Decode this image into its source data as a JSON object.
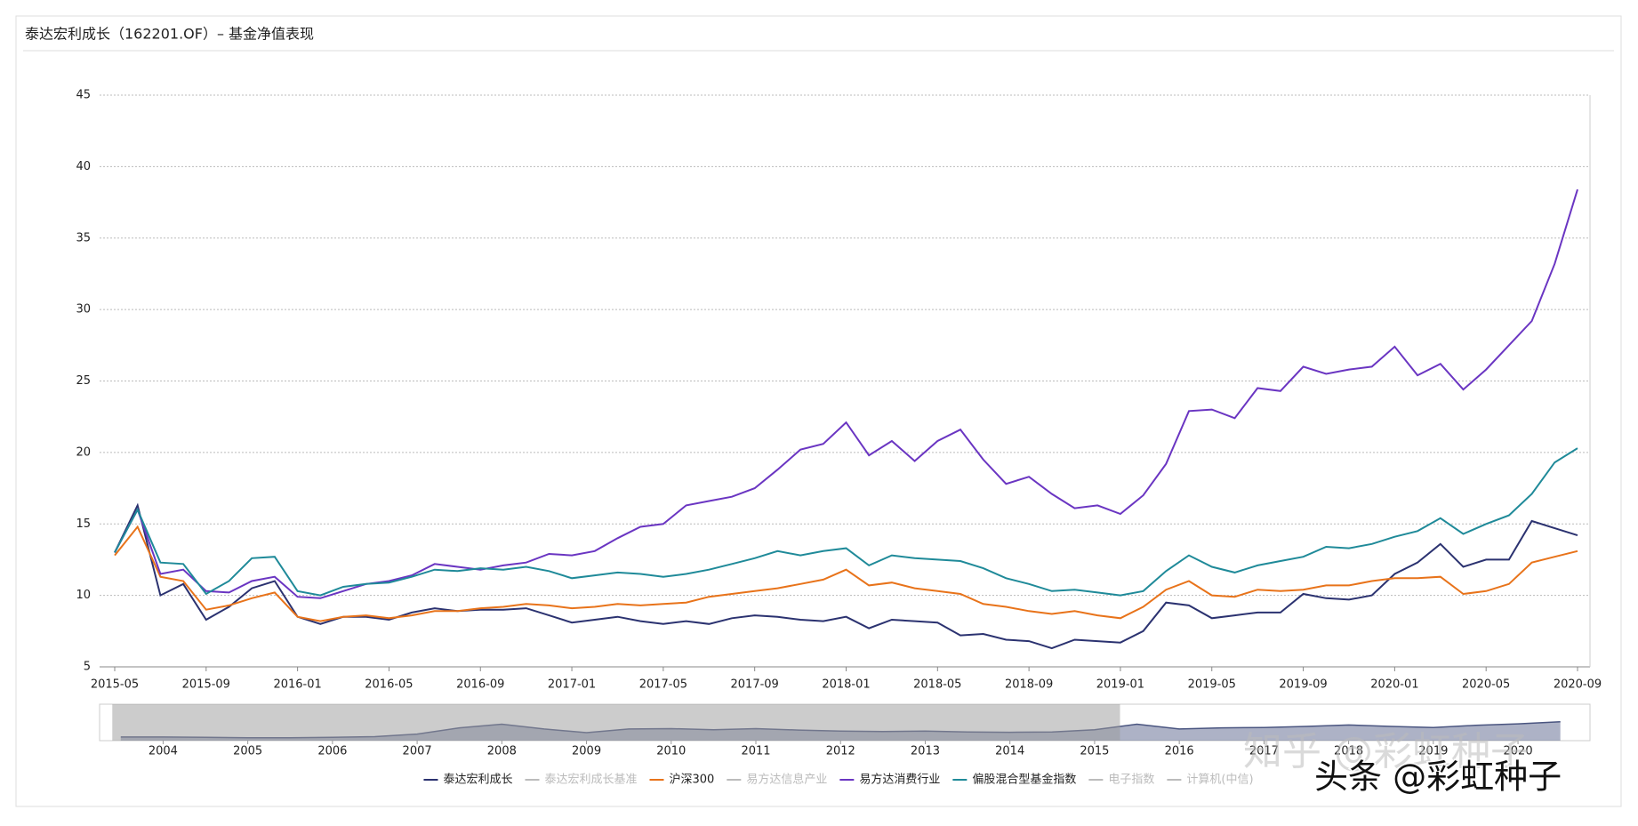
{
  "chart_data": {
    "type": "line",
    "title": "泰达宏利成长（162201.OF）– 基金净值表现",
    "categories": [
      "2015-05",
      null,
      null,
      null,
      "2015-09",
      null,
      null,
      null,
      "2016-01",
      null,
      null,
      null,
      "2016-05",
      null,
      null,
      null,
      "2016-09",
      null,
      null,
      null,
      "2017-01",
      null,
      null,
      null,
      "2017-05",
      null,
      null,
      null,
      "2017-09",
      null,
      null,
      null,
      "2018-01",
      null,
      null,
      null,
      "2018-05",
      null,
      null,
      null,
      "2018-09",
      null,
      null,
      null,
      "2019-01",
      null,
      null,
      null,
      "2019-05",
      null,
      null,
      null,
      "2019-09",
      null,
      null,
      null,
      "2020-01",
      null,
      null,
      null,
      "2020-05",
      null,
      null,
      null,
      "2020-09"
    ],
    "ylim": [
      5,
      45
    ],
    "yticks": [
      5,
      10,
      15,
      20,
      25,
      30,
      35,
      40,
      45
    ],
    "grid": true,
    "series": [
      {
        "name": "泰达宏利成长",
        "color": "#2b3270",
        "visible": true,
        "values": [
          13,
          16.3,
          10,
          10.8,
          8.3,
          9.2,
          10.5,
          11,
          8.5,
          8,
          8.5,
          8.5,
          8.3,
          8.8,
          9.1,
          8.9,
          9,
          9,
          9.1,
          8.6,
          8.1,
          8.3,
          8.5,
          8.2,
          8,
          8.2,
          8,
          8.4,
          8.6,
          8.5,
          8.3,
          8.2,
          8.5,
          7.7,
          8.3,
          8.2,
          8.1,
          7.2,
          7.3,
          6.9,
          6.8,
          6.3,
          6.9,
          6.8,
          6.7,
          7.5,
          9.5,
          9.3,
          8.4,
          8.6,
          8.8,
          8.8,
          10.1,
          9.8,
          9.7,
          10,
          11.5,
          12.3,
          13.6,
          12,
          12.5,
          12.5,
          15.2,
          14.7,
          14.2
        ]
      },
      {
        "name": "泰达宏利成长基准",
        "color": "#bbbbbb",
        "visible": false
      },
      {
        "name": "沪深300",
        "color": "#e8731a",
        "visible": true,
        "values": [
          12.8,
          14.8,
          11.3,
          11,
          9,
          9.3,
          9.8,
          10.2,
          8.5,
          8.2,
          8.5,
          8.6,
          8.4,
          8.6,
          8.9,
          8.9,
          9.1,
          9.2,
          9.4,
          9.3,
          9.1,
          9.2,
          9.4,
          9.3,
          9.4,
          9.5,
          9.9,
          10.1,
          10.3,
          10.5,
          10.8,
          11.1,
          11.8,
          10.7,
          10.9,
          10.5,
          10.3,
          10.1,
          9.4,
          9.2,
          8.9,
          8.7,
          8.9,
          8.6,
          8.4,
          9.2,
          10.4,
          11,
          10,
          9.9,
          10.4,
          10.3,
          10.4,
          10.7,
          10.7,
          11,
          11.2,
          11.2,
          11.3,
          10.1,
          10.3,
          10.8,
          12.3,
          12.7,
          13.1
        ]
      },
      {
        "name": "易方达信息产业",
        "color": "#bbbbbb",
        "visible": false
      },
      {
        "name": "易方达消费行业",
        "color": "#6a35c2",
        "visible": true,
        "values": [
          13,
          16,
          11.5,
          11.8,
          10.3,
          10.2,
          11,
          11.3,
          9.9,
          9.8,
          10.3,
          10.8,
          11,
          11.4,
          12.2,
          12,
          11.8,
          12.1,
          12.3,
          12.9,
          12.8,
          13.1,
          14,
          14.8,
          15,
          16.3,
          16.6,
          16.9,
          17.5,
          18.8,
          20.2,
          20.6,
          22.1,
          19.8,
          20.8,
          19.4,
          20.8,
          21.6,
          19.5,
          17.8,
          18.3,
          17.1,
          16.1,
          16.3,
          15.7,
          17,
          19.2,
          22.9,
          23,
          22.4,
          24.5,
          24.3,
          26,
          25.5,
          25.8,
          26,
          27.4,
          25.4,
          26.2,
          24.4,
          25.8,
          27.5,
          29.2,
          33.2,
          38.4
        ]
      },
      {
        "name": "偏股混合型基金指数",
        "color": "#1f8a99",
        "visible": true,
        "values": [
          13,
          16,
          12.3,
          12.2,
          10.1,
          11,
          12.6,
          12.7,
          10.3,
          10,
          10.6,
          10.8,
          10.9,
          11.3,
          11.8,
          11.7,
          11.9,
          11.8,
          12,
          11.7,
          11.2,
          11.4,
          11.6,
          11.5,
          11.3,
          11.5,
          11.8,
          12.2,
          12.6,
          13.1,
          12.8,
          13.1,
          13.3,
          12.1,
          12.8,
          12.6,
          12.5,
          12.4,
          11.9,
          11.2,
          10.8,
          10.3,
          10.4,
          10.2,
          10,
          10.3,
          11.7,
          12.8,
          12,
          11.6,
          12.1,
          12.4,
          12.7,
          13.4,
          13.3,
          13.6,
          14.1,
          14.5,
          15.4,
          14.3,
          15,
          15.6,
          17.1,
          19.3,
          20.3
        ]
      },
      {
        "name": "电子指数",
        "color": "#bbbbbb",
        "visible": false
      },
      {
        "name": "计算机(中信)",
        "color": "#bbbbbb",
        "visible": false
      }
    ],
    "navigator": {
      "color": "#4a5580",
      "xlim": [
        2003.25,
        2020.85
      ],
      "ylim": [
        0,
        10
      ],
      "selected": [
        2003.4,
        2015.3
      ],
      "x": [
        2003.5,
        2004,
        2004.5,
        2005,
        2005.5,
        2006,
        2006.5,
        2007,
        2007.5,
        2008,
        2008.5,
        2009,
        2009.5,
        2010,
        2010.5,
        2011,
        2011.5,
        2012,
        2012.5,
        2013,
        2013.5,
        2014,
        2014.5,
        2015,
        2015.5,
        2016,
        2016.5,
        2017,
        2017.5,
        2018,
        2018.5,
        2019,
        2019.5,
        2020,
        2020.5
      ],
      "values": [
        1,
        1,
        0.9,
        0.8,
        0.8,
        0.9,
        1.1,
        1.8,
        3.5,
        4.5,
        3.2,
        2.2,
        3.2,
        3.3,
        3,
        3.3,
        2.9,
        2.6,
        2.5,
        2.6,
        2.4,
        2.3,
        2.4,
        3,
        4.5,
        3.2,
        3.5,
        3.6,
        3.9,
        4.3,
        3.9,
        3.6,
        4.2,
        4.6,
        5.2
      ],
      "xticks": [
        2004,
        2005,
        2006,
        2007,
        2008,
        2009,
        2010,
        2011,
        2012,
        2013,
        2014,
        2015,
        2016,
        2017,
        2018,
        2019,
        2020
      ]
    },
    "annotations": [
      "知乎 @彩虹种子",
      "头条 @彩虹种子"
    ]
  }
}
